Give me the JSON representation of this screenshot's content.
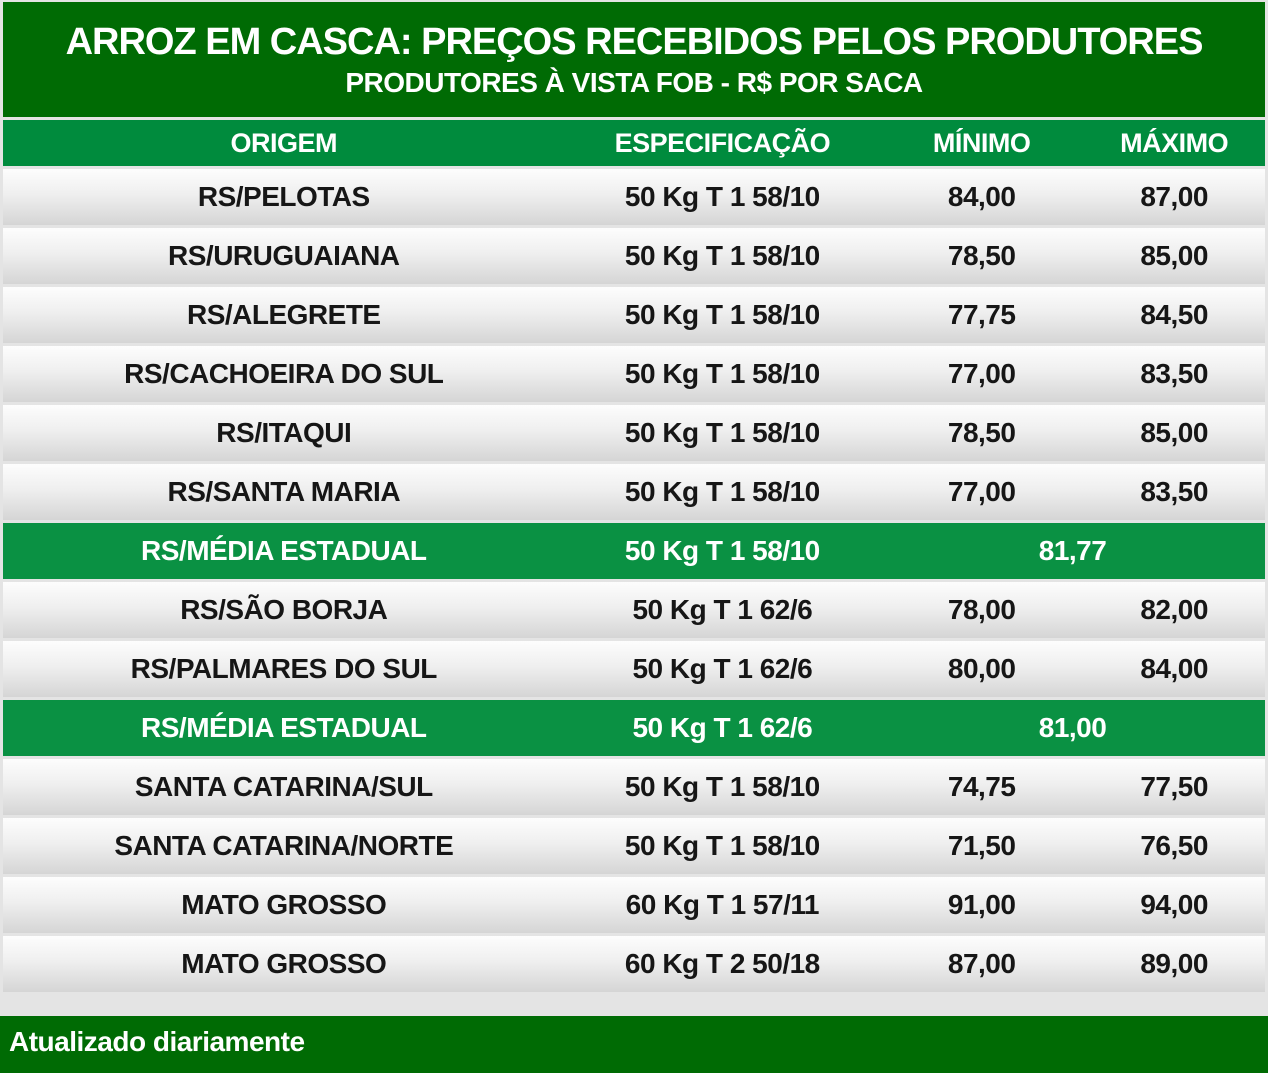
{
  "title": {
    "line1": "ARROZ EM CASCA: PREÇOS RECEBIDOS PELOS PRODUTORES",
    "line2": "PRODUTORES À VISTA FOB - R$ POR SACA"
  },
  "table": {
    "header": {
      "origem": "ORIGEM",
      "especificacao": "ESPECIFICAÇÃO",
      "minimo": "MÍNIMO",
      "maximo": "MÁXIMO"
    },
    "rows": [
      {
        "origem": "RS/PELOTAS",
        "spec": "50 Kg T 1 58/10",
        "min": "84,00",
        "max": "87,00"
      },
      {
        "origem": "RS/URUGUAIANA",
        "spec": "50 Kg T 1 58/10",
        "min": "78,50",
        "max": "85,00"
      },
      {
        "origem": "RS/ALEGRETE",
        "spec": "50 Kg T 1 58/10",
        "min": "77,75",
        "max": "84,50"
      },
      {
        "origem": "RS/CACHOEIRA DO SUL",
        "spec": "50 Kg T 1 58/10",
        "min": "77,00",
        "max": "83,50"
      },
      {
        "origem": "RS/ITAQUI",
        "spec": "50 Kg T 1 58/10",
        "min": "78,50",
        "max": "85,00"
      },
      {
        "origem": "RS/SANTA MARIA",
        "spec": "50 Kg T 1 58/10",
        "min": "77,00",
        "max": "83,50"
      },
      {
        "origem": "RS/MÉDIA ESTADUAL",
        "spec": "50 Kg T 1 58/10",
        "media": "81,77"
      },
      {
        "origem": "RS/SÃO BORJA",
        "spec": "50 Kg T 1 62/6",
        "min": "78,00",
        "max": "82,00"
      },
      {
        "origem": "RS/PALMARES DO SUL",
        "spec": "50 Kg T 1 62/6",
        "min": "80,00",
        "max": "84,00"
      },
      {
        "origem": "RS/MÉDIA ESTADUAL",
        "spec": "50 Kg T 1 62/6",
        "media": "81,00"
      },
      {
        "origem": "SANTA CATARINA/SUL",
        "spec": "50 Kg T 1 58/10",
        "min": "74,75",
        "max": "77,50"
      },
      {
        "origem": "SANTA CATARINA/NORTE",
        "spec": "50 Kg T 1 58/10",
        "min": "71,50",
        "max": "76,50"
      },
      {
        "origem": "MATO GROSSO",
        "spec": "60 Kg T 1 57/11",
        "min": "91,00",
        "max": "94,00"
      },
      {
        "origem": "MATO GROSSO",
        "spec": "60 Kg T 2 50/18",
        "min": "87,00",
        "max": "89,00"
      }
    ]
  },
  "footer": {
    "text": "Atualizado diariamente"
  },
  "colors": {
    "dark_green": "#006B04",
    "header_green": "#008B3D",
    "media_row_green": "#0A9143",
    "row_gradient_top": "#FDFDFD",
    "row_gradient_bottom": "#D5D5D5"
  }
}
